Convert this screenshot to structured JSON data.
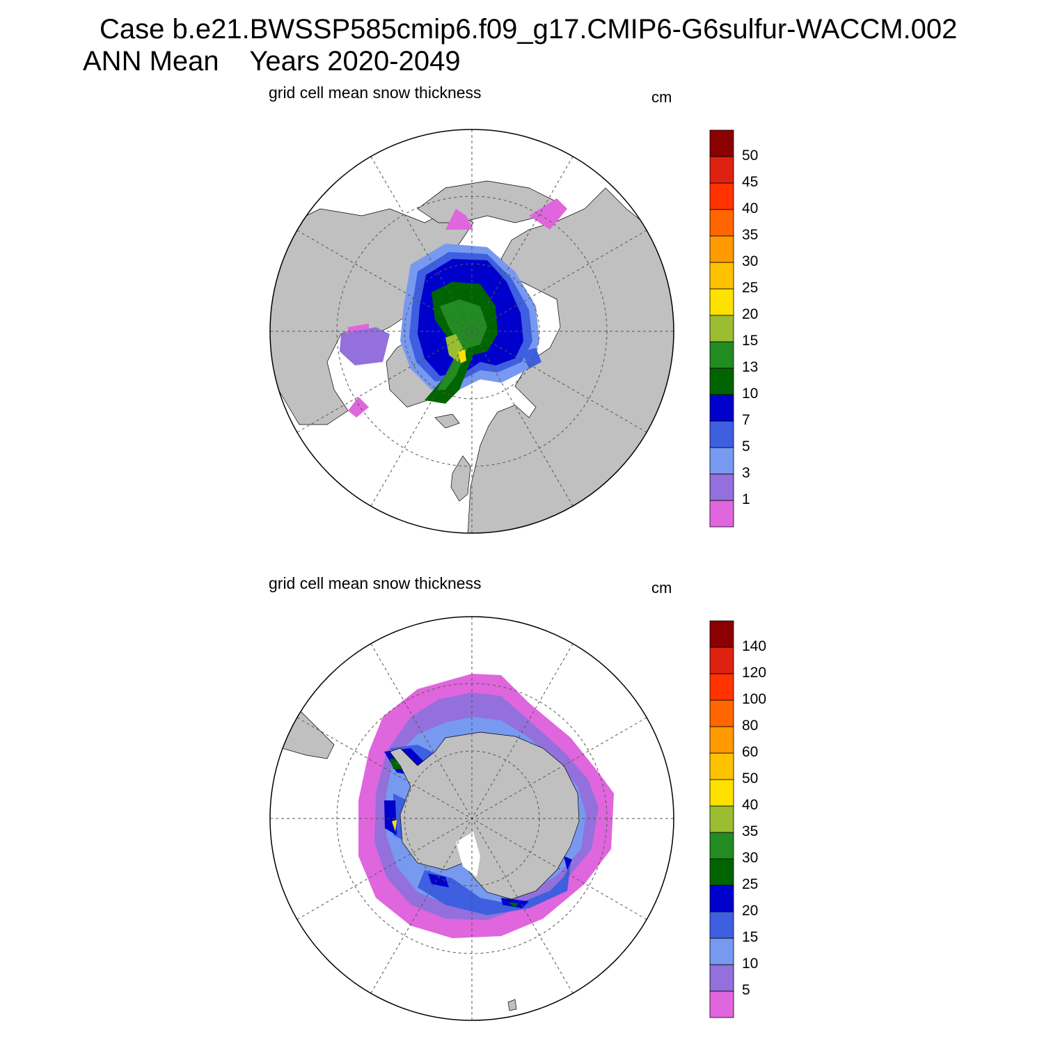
{
  "header": {
    "line1": "Case b.e21.BWSSP585cmip6.f09_g17.CMIP6-G6sulfur-WACCM.002",
    "line2": "ANN Mean    Years 2020-2049"
  },
  "colors": {
    "land": "#c0c0c0",
    "ocean": "#ffffff",
    "palette": [
      "#e066dd",
      "#9370db",
      "#7799f0",
      "#3d5fe0",
      "#0000cc",
      "#006400",
      "#228b22",
      "#9abd31",
      "#ffe100",
      "#ffc200",
      "#ff9a00",
      "#ff6600",
      "#ff3300",
      "#dd2211",
      "#8b0000"
    ]
  },
  "panels": [
    {
      "title": "grid cell mean snow thickness",
      "units": "cm",
      "colorbar_labels": [
        "50",
        "45",
        "40",
        "35",
        "30",
        "25",
        "20",
        "15",
        "13",
        "10",
        "7",
        "5",
        "3",
        "1"
      ]
    },
    {
      "title": "grid cell mean snow thickness",
      "units": "cm",
      "colorbar_labels": [
        "140",
        "120",
        "100",
        "80",
        "60",
        "50",
        "40",
        "35",
        "30",
        "25",
        "20",
        "15",
        "10",
        "5"
      ]
    }
  ]
}
